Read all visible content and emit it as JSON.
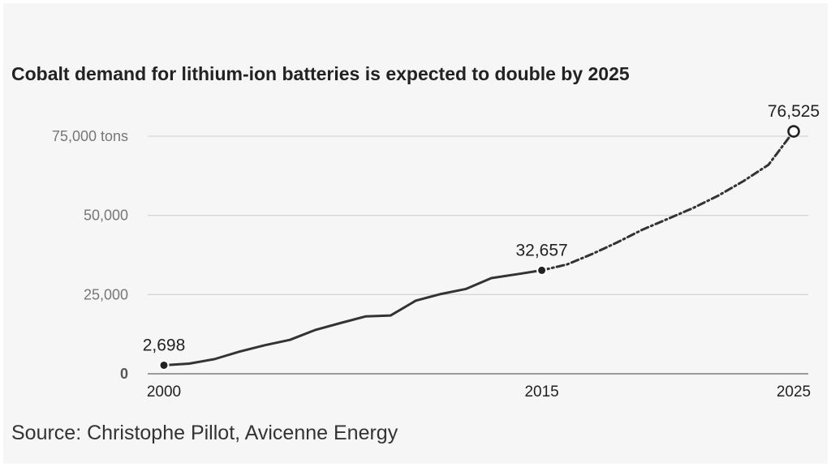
{
  "title": "Cobalt demand for lithium-ion batteries is expected to double by 2025",
  "source": "Source: Christophe Pillot, Avicenne Energy",
  "chart_data": {
    "type": "line",
    "title": "Cobalt demand for lithium-ion batteries is expected to double by 2025",
    "xlabel": "",
    "ylabel": "",
    "x_ticks": [
      "2000",
      "2015",
      "2025"
    ],
    "y_ticks": [
      {
        "value": 0,
        "label": "0"
      },
      {
        "value": 25000,
        "label": "25,000"
      },
      {
        "value": 50000,
        "label": "50,000"
      },
      {
        "value": 75000,
        "label": "75,000 tons"
      }
    ],
    "xlim": [
      2000,
      2025
    ],
    "ylim": [
      0,
      75000
    ],
    "grid": true,
    "series": [
      {
        "style": "solid",
        "color": "#333333",
        "x": [
          2000,
          2001,
          2002,
          2003,
          2004,
          2005,
          2006,
          2007,
          2008,
          2009,
          2010,
          2011,
          2012,
          2013,
          2014,
          2015
        ],
        "y": [
          2698,
          3200,
          4600,
          7000,
          9000,
          10700,
          13800,
          16000,
          18100,
          18400,
          23100,
          25200,
          26800,
          30200,
          31400,
          32657
        ]
      },
      {
        "style": "dashed",
        "color": "#333333",
        "x": [
          2015,
          2016,
          2017,
          2018,
          2019,
          2020,
          2021,
          2022,
          2023,
          2024,
          2025
        ],
        "y": [
          32657,
          34500,
          37800,
          41500,
          45500,
          48900,
          52300,
          56200,
          60800,
          66000,
          76525
        ]
      }
    ],
    "annotations": [
      {
        "x": 2000,
        "y": 2698,
        "label": "2,698",
        "marker": "filled"
      },
      {
        "x": 2015,
        "y": 32657,
        "label": "32,657",
        "marker": "filled"
      },
      {
        "x": 2025,
        "y": 76525,
        "label": "76,525",
        "marker": "open"
      }
    ]
  }
}
